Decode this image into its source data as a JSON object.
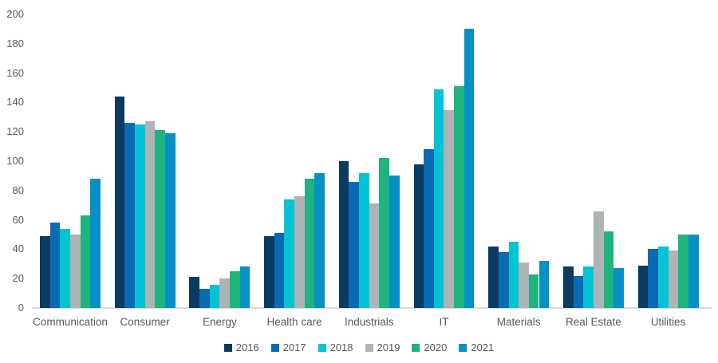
{
  "chart_data": {
    "type": "bar",
    "title": "",
    "categories": [
      "Communication",
      "Consumer",
      "Energy",
      "Health care",
      "Industrials",
      "IT",
      "Materials",
      "Real Estate",
      "Utilities"
    ],
    "series": [
      {
        "name": "2016",
        "color": "#0a3b61",
        "values": [
          49,
          144,
          21,
          49,
          100,
          98,
          42,
          28,
          29
        ]
      },
      {
        "name": "2017",
        "color": "#0a6bb2",
        "values": [
          58,
          126,
          13,
          51,
          86,
          108,
          38,
          22,
          40
        ]
      },
      {
        "name": "2018",
        "color": "#00c4d4",
        "values": [
          54,
          125,
          16,
          74,
          92,
          149,
          45,
          28,
          42
        ]
      },
      {
        "name": "2019",
        "color": "#aeb3b5",
        "values": [
          50,
          127,
          20,
          76,
          71,
          135,
          31,
          66,
          39
        ]
      },
      {
        "name": "2020",
        "color": "#1eb47e",
        "values": [
          63,
          121,
          25,
          88,
          102,
          151,
          23,
          52,
          50
        ]
      },
      {
        "name": "2021",
        "color": "#0691c4",
        "values": [
          88,
          119,
          28,
          92,
          90,
          190,
          32,
          27,
          50
        ]
      }
    ],
    "y_ticks": [
      0,
      20,
      40,
      60,
      80,
      100,
      120,
      140,
      160,
      180,
      200
    ],
    "ylim": [
      0,
      200
    ],
    "xlabel": "",
    "ylabel": "",
    "grid": false,
    "legend_position": "bottom",
    "legend_labels": [
      "2016",
      "2017",
      "2018",
      "2019",
      "2020",
      "2021"
    ]
  },
  "colors": {
    "background": "#ffffff",
    "text": "#595959",
    "axis_line": "#d9d9d9"
  }
}
